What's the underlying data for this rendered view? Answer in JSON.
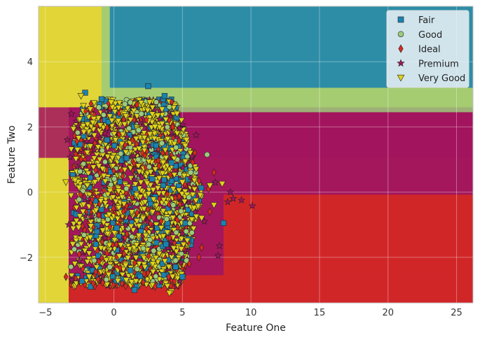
{
  "chart_data": {
    "type": "scatter",
    "title": "",
    "xlabel": "Feature One",
    "ylabel": "Feature Two",
    "xlim": [
      -5.5,
      26.2
    ],
    "ylim": [
      -3.4,
      5.7
    ],
    "xticks": [
      -5,
      0,
      5,
      10,
      15,
      20,
      25
    ],
    "yticks": [
      -2,
      0,
      2,
      4
    ],
    "grid": true,
    "legend_position": "top-right",
    "colors": {
      "Fair": "#1a82b0",
      "Good": "#9ccb7b",
      "Ideal": "#d9291f",
      "Premium": "#a3145e",
      "Very Good": "#e0d21a"
    },
    "markers": {
      "Fair": "square",
      "Good": "circle",
      "Ideal": "diamond",
      "Premium": "star",
      "Very Good": "triangle-down"
    },
    "decision_regions": [
      {
        "class": "Very Good",
        "x": [
          -5.5,
          26.2
        ],
        "y": [
          -3.4,
          5.7
        ]
      },
      {
        "class": "Premium",
        "x": [
          -5.5,
          26.2
        ],
        "y": [
          1.05,
          2.6
        ]
      },
      {
        "class": "Premium",
        "x": [
          -3.3,
          26.2
        ],
        "y": [
          -3.4,
          2.6
        ]
      },
      {
        "class": "Premium",
        "x": [
          -3.3,
          26.2
        ],
        "y": [
          -3.4,
          2.45
        ]
      },
      {
        "class": "Good",
        "x": [
          -0.9,
          26.2
        ],
        "y": [
          2.45,
          5.7
        ]
      },
      {
        "class": "Fair",
        "x": [
          -0.3,
          26.2
        ],
        "y": [
          3.2,
          5.7
        ]
      },
      {
        "class": "Ideal",
        "x": [
          8.0,
          26.2
        ],
        "y": [
          -2.55,
          -0.08
        ]
      },
      {
        "class": "Ideal",
        "x": [
          -3.3,
          4.5
        ],
        "y": [
          -3.4,
          -2.7
        ]
      },
      {
        "class": "Ideal",
        "x": [
          4.5,
          26.2
        ],
        "y": [
          -3.4,
          -2.55
        ]
      }
    ],
    "series": [
      {
        "name": "Fair",
        "points": [
          [
            -2.1,
            3.05
          ],
          [
            2.5,
            3.25
          ],
          [
            3.7,
            2.95
          ],
          [
            -0.9,
            2.85
          ],
          [
            8.0,
            -0.95
          ],
          [
            5.0,
            -2.6
          ],
          [
            4.5,
            -2.3
          ],
          [
            1.5,
            -3.0
          ],
          [
            -1.7,
            -2.9
          ],
          [
            3.8,
            -1.6
          ],
          [
            0.2,
            -1.1
          ],
          [
            2.8,
            0.4
          ],
          [
            -0.5,
            1.6
          ],
          [
            1.2,
            -2.4
          ],
          [
            4.2,
            0.9
          ]
        ]
      },
      {
        "name": "Good",
        "points": [
          [
            1.2,
            2.75
          ],
          [
            2.0,
            2.4
          ],
          [
            6.8,
            1.15
          ],
          [
            5.3,
            -2.1
          ],
          [
            4.5,
            -2.1
          ],
          [
            -1.1,
            2.6
          ],
          [
            0.8,
            2.7
          ],
          [
            3.5,
            1.5
          ],
          [
            2.9,
            -1.8
          ],
          [
            -0.3,
            -2.3
          ],
          [
            5.6,
            0.6
          ],
          [
            1.8,
            1.9
          ]
        ]
      },
      {
        "name": "Ideal",
        "points": [
          [
            4.3,
            2.0
          ],
          [
            6.4,
            -1.7
          ],
          [
            6.2,
            -2.0
          ],
          [
            5.5,
            -2.2
          ],
          [
            7.3,
            0.6
          ],
          [
            7.0,
            -0.6
          ],
          [
            -3.5,
            -2.6
          ],
          [
            0.6,
            -2.8
          ],
          [
            3.0,
            -2.9
          ],
          [
            4.0,
            -2.6
          ],
          [
            5.9,
            1.2
          ],
          [
            6.9,
            0.1
          ],
          [
            2.2,
            -2.5
          ],
          [
            -1.5,
            -2.8
          ]
        ]
      },
      {
        "name": "Premium",
        "points": [
          [
            8.3,
            -0.3
          ],
          [
            8.7,
            -0.2
          ],
          [
            9.3,
            -0.25
          ],
          [
            10.1,
            -0.42
          ],
          [
            7.7,
            -1.65
          ],
          [
            7.6,
            -1.95
          ],
          [
            6.0,
            1.75
          ],
          [
            5.7,
            1.1
          ],
          [
            7.4,
            0.3
          ],
          [
            8.5,
            0.0
          ],
          [
            -3.4,
            1.6
          ],
          [
            -3.1,
            2.4
          ],
          [
            6.6,
            -0.9
          ],
          [
            -3.3,
            -1.0
          ],
          [
            4.8,
            1.95
          ]
        ]
      },
      {
        "name": "Very Good",
        "points": [
          [
            -2.4,
            2.95
          ],
          [
            -0.2,
            2.75
          ],
          [
            6.0,
            0.7
          ],
          [
            5.3,
            1.6
          ],
          [
            7.9,
            0.25
          ],
          [
            4.2,
            -3.05
          ],
          [
            4.05,
            -3.1
          ],
          [
            -3.5,
            0.3
          ],
          [
            7.3,
            -0.4
          ],
          [
            6.4,
            -0.8
          ],
          [
            3.2,
            2.35
          ],
          [
            -1.8,
            -2.6
          ],
          [
            0.9,
            -2.7
          ],
          [
            5.0,
            0.3
          ],
          [
            3.0,
            2.0
          ],
          [
            4.6,
            2.4
          ],
          [
            -3.0,
            -1.6
          ],
          [
            7.0,
            0.2
          ]
        ]
      }
    ],
    "cloud": {
      "x_left": -3.2,
      "x_right_top": 4.5,
      "x_right_mid": 6.5,
      "x_right_bottom": 5.0,
      "y_top": 2.85,
      "y_bottom": -2.9
    },
    "legend": [
      {
        "label": "Fair"
      },
      {
        "label": "Good"
      },
      {
        "label": "Ideal"
      },
      {
        "label": "Premium"
      },
      {
        "label": "Very Good"
      }
    ]
  }
}
